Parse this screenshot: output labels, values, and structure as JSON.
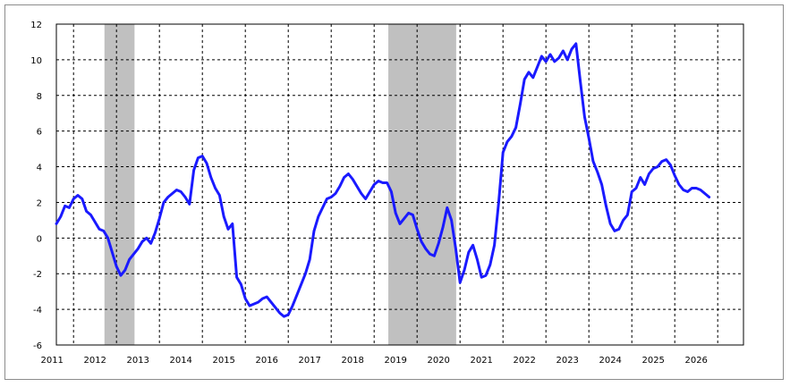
{
  "chart_data": {
    "type": "line",
    "title": "",
    "xlabel": "",
    "ylabel": "",
    "xlim": [
      2010.6,
      2026.6
    ],
    "ylim": [
      -6,
      12
    ],
    "grid": true,
    "x_ticks": [
      "2011",
      "2012",
      "2013",
      "2014",
      "2015",
      "2016",
      "2017",
      "2018",
      "2019",
      "2020",
      "2021",
      "2022",
      "2023",
      "2024",
      "2025",
      "2026"
    ],
    "y_ticks": [
      "12",
      "10",
      "8",
      "6",
      "4",
      "2",
      "0",
      "-2",
      "-4",
      "-6"
    ],
    "shaded_periods": [
      [
        2011.72,
        2012.42
      ],
      [
        2018.33,
        2019.91
      ]
    ],
    "colors": {
      "line": "#1a1aff",
      "shade": "#c0c0c0",
      "grid": "#000000"
    },
    "series": [
      {
        "values": [
          [
            2010.6,
            0.8
          ],
          [
            2010.7,
            1.2
          ],
          [
            2010.8,
            1.8
          ],
          [
            2010.9,
            1.7
          ],
          [
            2011.0,
            2.2
          ],
          [
            2011.1,
            2.4
          ],
          [
            2011.2,
            2.2
          ],
          [
            2011.3,
            1.5
          ],
          [
            2011.4,
            1.3
          ],
          [
            2011.5,
            0.9
          ],
          [
            2011.6,
            0.5
          ],
          [
            2011.7,
            0.4
          ],
          [
            2011.8,
            0.0
          ],
          [
            2011.9,
            -0.8
          ],
          [
            2012.0,
            -1.6
          ],
          [
            2012.1,
            -2.1
          ],
          [
            2012.2,
            -1.8
          ],
          [
            2012.3,
            -1.2
          ],
          [
            2012.4,
            -0.9
          ],
          [
            2012.5,
            -0.6
          ],
          [
            2012.6,
            -0.2
          ],
          [
            2012.7,
            0.0
          ],
          [
            2012.8,
            -0.3
          ],
          [
            2012.9,
            0.3
          ],
          [
            2013.0,
            1.1
          ],
          [
            2013.1,
            2.0
          ],
          [
            2013.2,
            2.3
          ],
          [
            2013.3,
            2.5
          ],
          [
            2013.4,
            2.7
          ],
          [
            2013.5,
            2.6
          ],
          [
            2013.6,
            2.3
          ],
          [
            2013.7,
            1.9
          ],
          [
            2013.8,
            3.8
          ],
          [
            2013.9,
            4.5
          ],
          [
            2014.0,
            4.6
          ],
          [
            2014.1,
            4.2
          ],
          [
            2014.2,
            3.4
          ],
          [
            2014.3,
            2.8
          ],
          [
            2014.4,
            2.4
          ],
          [
            2014.5,
            1.2
          ],
          [
            2014.6,
            0.5
          ],
          [
            2014.7,
            0.8
          ],
          [
            2014.8,
            -2.2
          ],
          [
            2014.9,
            -2.6
          ],
          [
            2015.0,
            -3.4
          ],
          [
            2015.1,
            -3.8
          ],
          [
            2015.2,
            -3.7
          ],
          [
            2015.3,
            -3.6
          ],
          [
            2015.4,
            -3.4
          ],
          [
            2015.5,
            -3.3
          ],
          [
            2015.6,
            -3.6
          ],
          [
            2015.7,
            -3.9
          ],
          [
            2015.8,
            -4.2
          ],
          [
            2015.9,
            -4.4
          ],
          [
            2016.0,
            -4.3
          ],
          [
            2016.1,
            -3.8
          ],
          [
            2016.2,
            -3.2
          ],
          [
            2016.3,
            -2.6
          ],
          [
            2016.4,
            -2.0
          ],
          [
            2016.5,
            -1.2
          ],
          [
            2016.6,
            0.4
          ],
          [
            2016.7,
            1.2
          ],
          [
            2016.8,
            1.7
          ],
          [
            2016.9,
            2.2
          ],
          [
            2017.0,
            2.3
          ],
          [
            2017.1,
            2.5
          ],
          [
            2017.2,
            2.9
          ],
          [
            2017.3,
            3.4
          ],
          [
            2017.4,
            3.6
          ],
          [
            2017.5,
            3.3
          ],
          [
            2017.6,
            2.9
          ],
          [
            2017.7,
            2.5
          ],
          [
            2017.8,
            2.2
          ],
          [
            2017.9,
            2.6
          ],
          [
            2018.0,
            3.0
          ],
          [
            2018.1,
            3.2
          ],
          [
            2018.2,
            3.1
          ],
          [
            2018.3,
            3.1
          ],
          [
            2018.4,
            2.6
          ],
          [
            2018.5,
            1.4
          ],
          [
            2018.6,
            0.8
          ],
          [
            2018.7,
            1.1
          ],
          [
            2018.8,
            1.4
          ],
          [
            2018.9,
            1.3
          ],
          [
            2019.0,
            0.5
          ],
          [
            2019.1,
            -0.2
          ],
          [
            2019.2,
            -0.6
          ],
          [
            2019.3,
            -0.9
          ],
          [
            2019.4,
            -1.0
          ],
          [
            2019.5,
            -0.3
          ],
          [
            2019.6,
            0.6
          ],
          [
            2019.7,
            1.7
          ],
          [
            2019.8,
            1.0
          ],
          [
            2019.9,
            -0.6
          ],
          [
            2020.0,
            -2.5
          ],
          [
            2020.1,
            -1.8
          ],
          [
            2020.2,
            -0.8
          ],
          [
            2020.3,
            -0.4
          ],
          [
            2020.4,
            -1.2
          ],
          [
            2020.5,
            -2.2
          ],
          [
            2020.6,
            -2.1
          ],
          [
            2020.7,
            -1.5
          ],
          [
            2020.8,
            -0.4
          ],
          [
            2020.9,
            2.0
          ],
          [
            2021.0,
            4.8
          ],
          [
            2021.1,
            5.4
          ],
          [
            2021.2,
            5.7
          ],
          [
            2021.3,
            6.2
          ],
          [
            2021.4,
            7.5
          ],
          [
            2021.5,
            8.9
          ],
          [
            2021.6,
            9.3
          ],
          [
            2021.7,
            9.0
          ],
          [
            2021.8,
            9.6
          ],
          [
            2021.9,
            10.2
          ],
          [
            2022.0,
            9.9
          ],
          [
            2022.1,
            10.3
          ],
          [
            2022.2,
            9.9
          ],
          [
            2022.3,
            10.1
          ],
          [
            2022.4,
            10.5
          ],
          [
            2022.5,
            10.0
          ],
          [
            2022.6,
            10.6
          ],
          [
            2022.7,
            10.9
          ],
          [
            2022.8,
            8.8
          ],
          [
            2022.9,
            6.8
          ],
          [
            2023.0,
            5.6
          ],
          [
            2023.1,
            4.3
          ],
          [
            2023.2,
            3.7
          ],
          [
            2023.3,
            3.0
          ],
          [
            2023.4,
            1.8
          ],
          [
            2023.5,
            0.8
          ],
          [
            2023.6,
            0.4
          ],
          [
            2023.7,
            0.5
          ],
          [
            2023.8,
            1.0
          ],
          [
            2023.9,
            1.3
          ],
          [
            2024.0,
            2.6
          ],
          [
            2024.1,
            2.8
          ],
          [
            2024.2,
            3.4
          ],
          [
            2024.3,
            3.0
          ],
          [
            2024.4,
            3.6
          ],
          [
            2024.5,
            3.9
          ],
          [
            2024.6,
            4.0
          ],
          [
            2024.7,
            4.3
          ],
          [
            2024.8,
            4.4
          ],
          [
            2024.9,
            4.1
          ],
          [
            2025.0,
            3.5
          ],
          [
            2025.1,
            3.0
          ],
          [
            2025.2,
            2.7
          ],
          [
            2025.3,
            2.6
          ],
          [
            2025.4,
            2.8
          ],
          [
            2025.5,
            2.8
          ],
          [
            2025.6,
            2.7
          ],
          [
            2025.7,
            2.5
          ],
          [
            2025.8,
            2.3
          ]
        ]
      }
    ]
  }
}
